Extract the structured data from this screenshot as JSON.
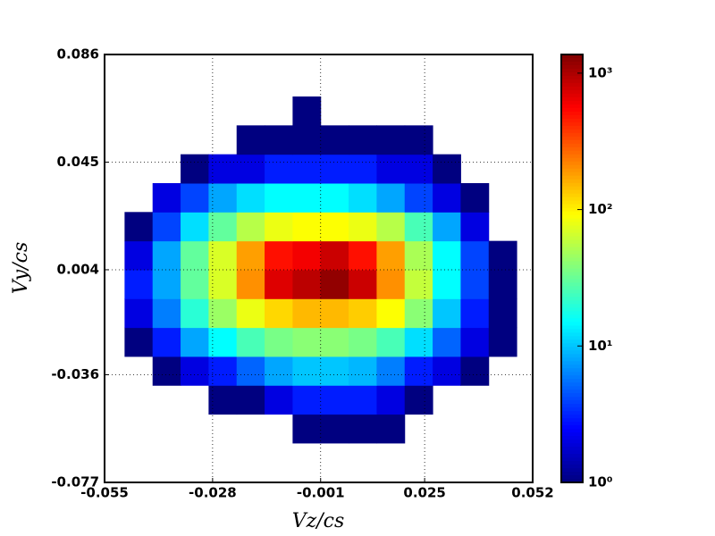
{
  "chart_data": {
    "type": "hist2d",
    "xlabel": "Vz/cs",
    "ylabel": "Vy/cs",
    "xlim": [
      -0.055,
      0.052
    ],
    "xticks": [
      -0.055,
      -0.028,
      -0.001,
      0.025,
      0.052
    ],
    "ylim": [
      -0.077,
      0.086
    ],
    "yticks": [
      -0.077,
      -0.036,
      0.004,
      0.045,
      0.086
    ],
    "grid": true,
    "colormap": "jet",
    "colorbar_scale": "log",
    "zlim": [
      1,
      1370
    ],
    "zticks": [
      {
        "value": 1,
        "label": "10⁰"
      },
      {
        "value": 10,
        "label": "10¹"
      },
      {
        "value": 100,
        "label": "10²"
      },
      {
        "value": 1000,
        "label": "10³"
      }
    ],
    "xbins": [
      -0.05,
      -0.043,
      -0.036,
      -0.029,
      -0.022,
      -0.015,
      -0.008,
      -0.001,
      0.006,
      0.013,
      0.02,
      0.027,
      0.034,
      0.041,
      0.048
    ],
    "ybins": [
      -0.062,
      -0.051,
      -0.04,
      -0.029,
      -0.018,
      -0.007,
      0.004,
      0.015,
      0.026,
      0.037,
      0.048,
      0.059,
      0.07
    ],
    "counts": [
      [
        null,
        null,
        null,
        null,
        null,
        null,
        1,
        1,
        1,
        1,
        null,
        null,
        null,
        null
      ],
      [
        null,
        null,
        null,
        1,
        1,
        2,
        3,
        3,
        3,
        2,
        1,
        null,
        null,
        null
      ],
      [
        null,
        1,
        2,
        3,
        5,
        8,
        10,
        10,
        9,
        6,
        3,
        2,
        1,
        null
      ],
      [
        1,
        3,
        8,
        15,
        25,
        35,
        40,
        40,
        35,
        25,
        12,
        5,
        2,
        1
      ],
      [
        2,
        6,
        20,
        45,
        80,
        120,
        150,
        150,
        130,
        90,
        40,
        10,
        3,
        1
      ],
      [
        3,
        8,
        30,
        70,
        200,
        700,
        900,
        1200,
        800,
        200,
        60,
        15,
        4,
        1
      ],
      [
        2,
        8,
        30,
        70,
        180,
        500,
        600,
        800,
        500,
        180,
        50,
        15,
        4,
        1
      ],
      [
        1,
        4,
        12,
        30,
        55,
        80,
        90,
        90,
        80,
        55,
        25,
        8,
        2,
        null
      ],
      [
        null,
        2,
        4,
        8,
        12,
        15,
        15,
        15,
        12,
        8,
        4,
        2,
        1,
        null
      ],
      [
        null,
        null,
        1,
        2,
        2,
        3,
        3,
        3,
        3,
        2,
        2,
        1,
        null,
        null
      ],
      [
        null,
        null,
        null,
        null,
        1,
        1,
        1,
        1,
        1,
        1,
        1,
        null,
        null,
        null
      ],
      [
        null,
        null,
        null,
        null,
        null,
        null,
        1,
        null,
        null,
        null,
        null,
        null,
        null,
        null
      ]
    ]
  }
}
